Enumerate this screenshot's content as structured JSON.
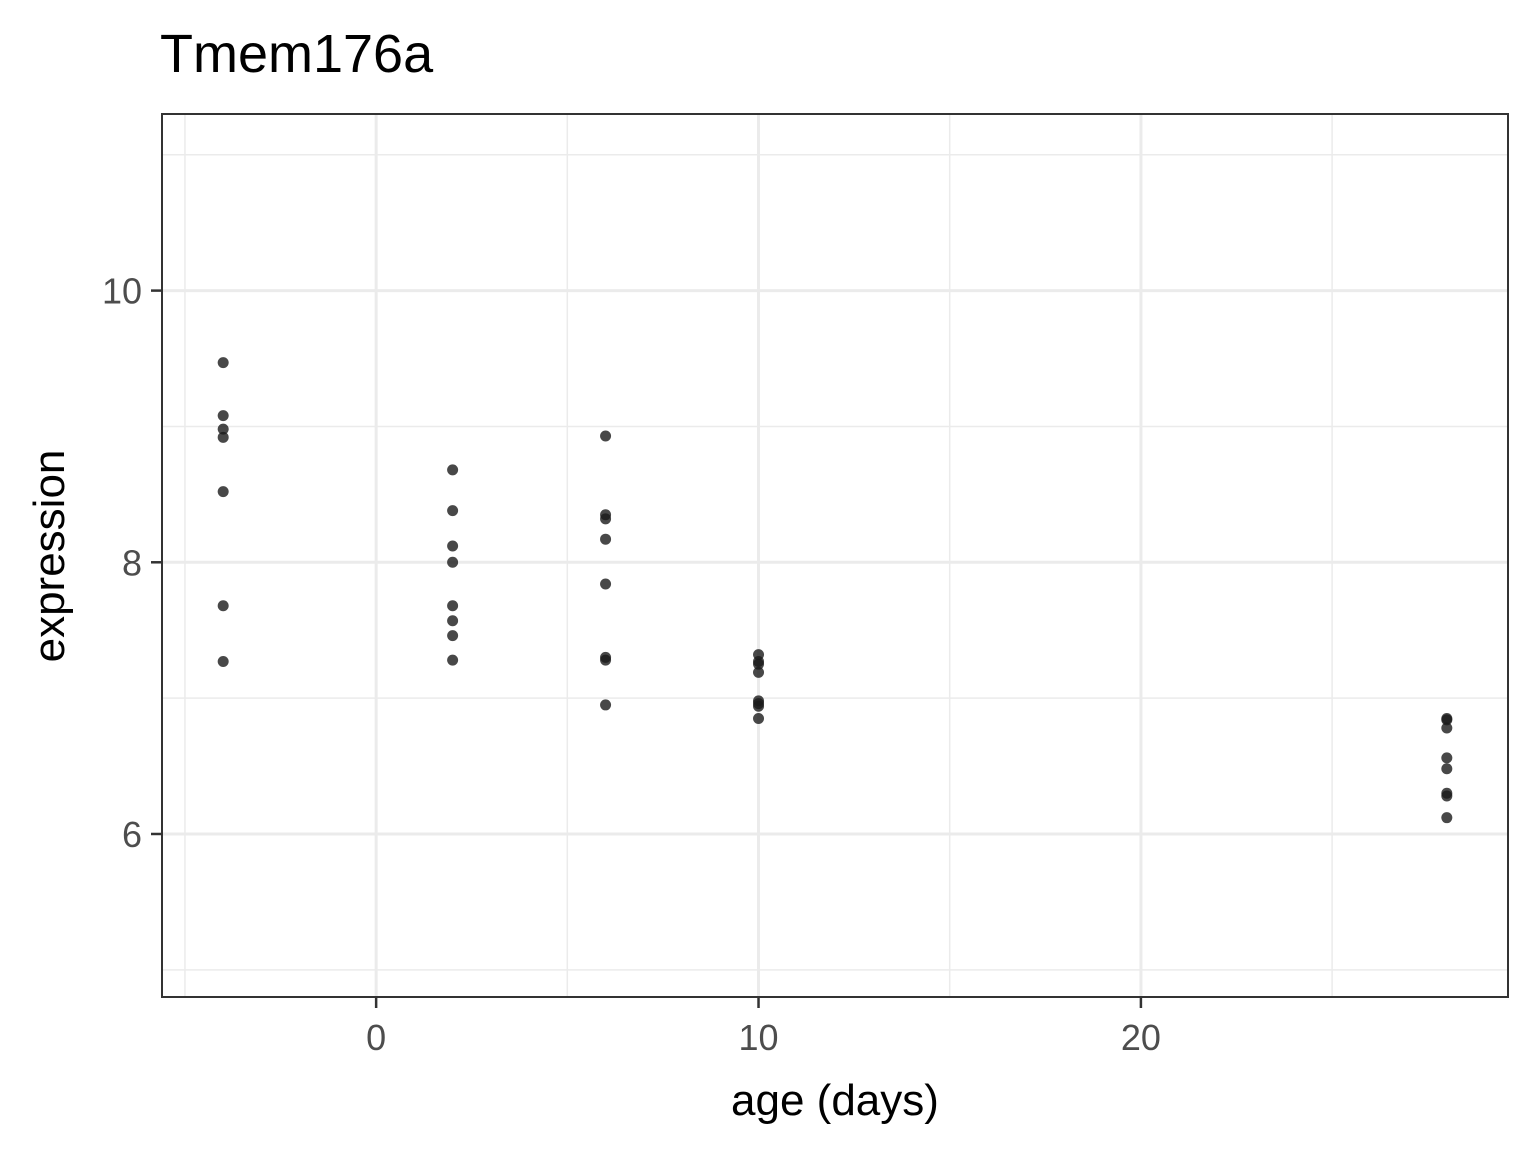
{
  "chart_data": {
    "type": "scatter",
    "title": "Tmem176a",
    "xlabel": "age (days)",
    "ylabel": "expression",
    "xlim": [
      -5.6,
      29.6
    ],
    "ylim": [
      4.8,
      11.3
    ],
    "x_major_ticks": [
      0,
      10,
      20
    ],
    "x_tick_labels": [
      "0",
      "10",
      "20"
    ],
    "x_minor_ticks": [
      -5,
      5,
      15,
      25
    ],
    "y_major_ticks": [
      6,
      8,
      10
    ],
    "y_tick_labels": [
      "6",
      "8",
      "10"
    ],
    "y_minor_ticks": [
      5,
      7,
      9,
      11
    ],
    "grid": true,
    "point_color": "#1a1a1a",
    "points": [
      {
        "x": -4,
        "y": 9.47
      },
      {
        "x": -4,
        "y": 9.08
      },
      {
        "x": -4,
        "y": 8.98
      },
      {
        "x": -4,
        "y": 8.92
      },
      {
        "x": -4,
        "y": 8.52
      },
      {
        "x": -4,
        "y": 7.68
      },
      {
        "x": -4,
        "y": 7.27
      },
      {
        "x": 2,
        "y": 8.68
      },
      {
        "x": 2,
        "y": 8.38
      },
      {
        "x": 2,
        "y": 8.12
      },
      {
        "x": 2,
        "y": 8.0
      },
      {
        "x": 2,
        "y": 7.68
      },
      {
        "x": 2,
        "y": 7.57
      },
      {
        "x": 2,
        "y": 7.46
      },
      {
        "x": 2,
        "y": 7.28
      },
      {
        "x": 6,
        "y": 8.93
      },
      {
        "x": 6,
        "y": 8.35
      },
      {
        "x": 6,
        "y": 8.32
      },
      {
        "x": 6,
        "y": 8.17
      },
      {
        "x": 6,
        "y": 7.84
      },
      {
        "x": 6,
        "y": 7.3
      },
      {
        "x": 6,
        "y": 7.28
      },
      {
        "x": 6,
        "y": 6.95
      },
      {
        "x": 10,
        "y": 7.32
      },
      {
        "x": 10,
        "y": 7.27
      },
      {
        "x": 10,
        "y": 7.25
      },
      {
        "x": 10,
        "y": 7.19
      },
      {
        "x": 10,
        "y": 6.98
      },
      {
        "x": 10,
        "y": 6.96
      },
      {
        "x": 10,
        "y": 6.94
      },
      {
        "x": 10,
        "y": 6.85
      },
      {
        "x": 28,
        "y": 6.85
      },
      {
        "x": 28,
        "y": 6.84
      },
      {
        "x": 28,
        "y": 6.78
      },
      {
        "x": 28,
        "y": 6.56
      },
      {
        "x": 28,
        "y": 6.48
      },
      {
        "x": 28,
        "y": 6.3
      },
      {
        "x": 28,
        "y": 6.28
      },
      {
        "x": 28,
        "y": 6.12
      }
    ]
  }
}
